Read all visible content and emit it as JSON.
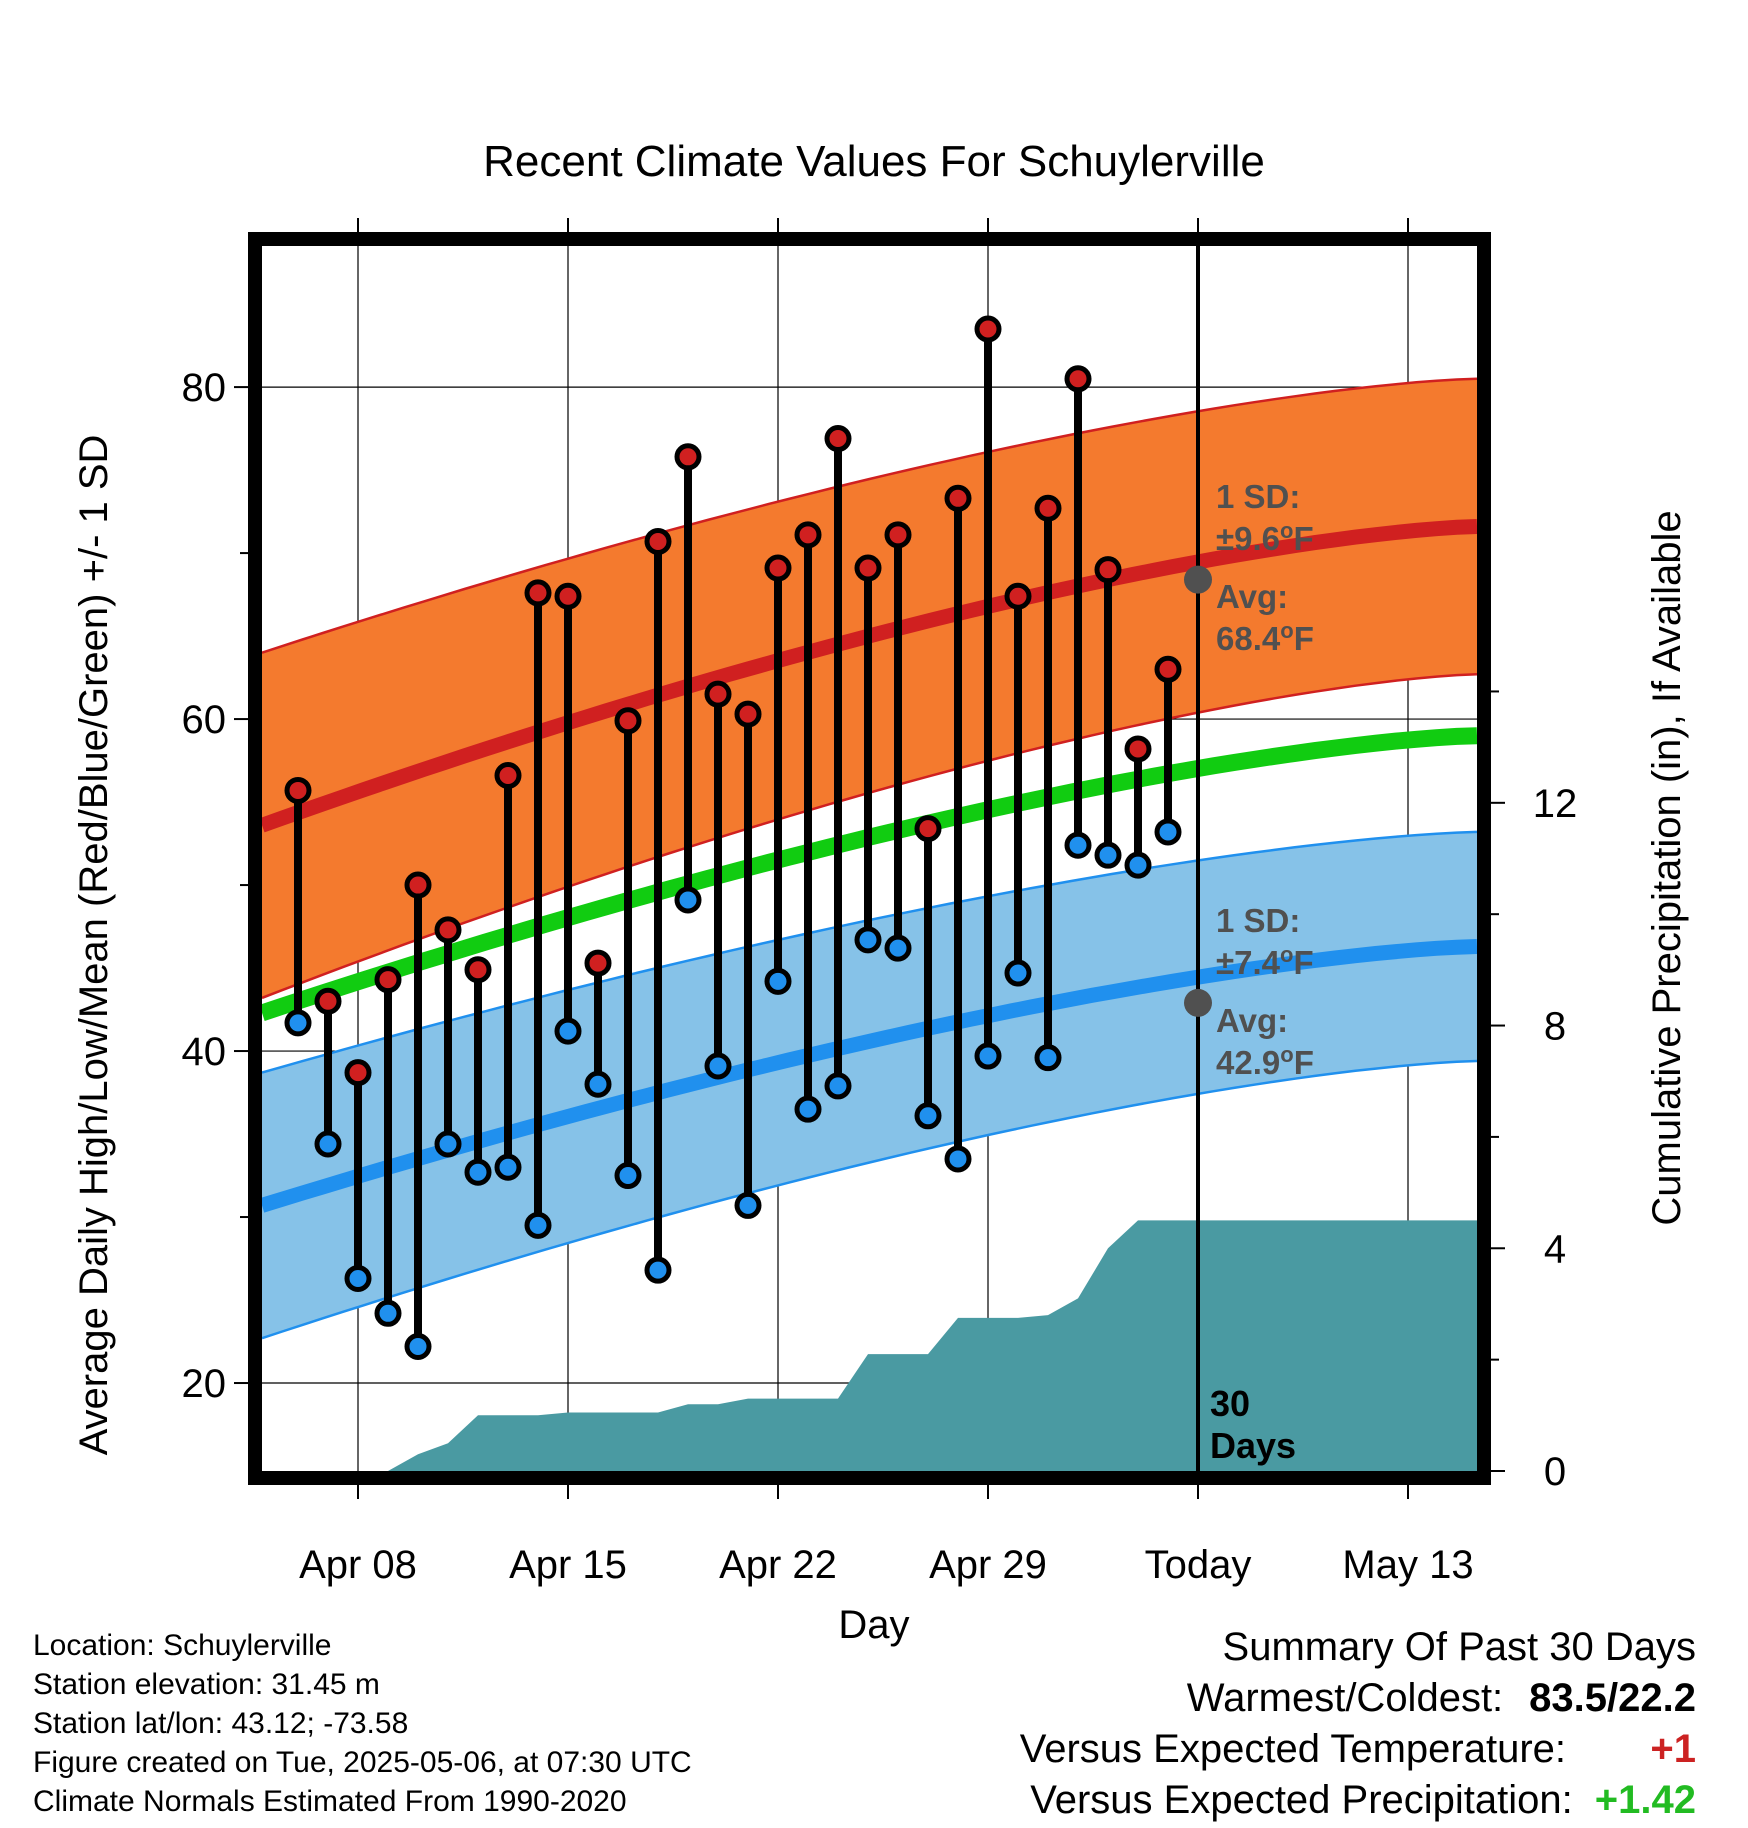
{
  "chart_data": {
    "type": "line",
    "title": "Recent Climate Values For Schuylerville",
    "xlabel": "Day",
    "ylabel": "Average Daily High/Low/Mean (Red/Blue/Green) +/- 1 SD",
    "y2label": "Cumulative Precipitation (in), If Available",
    "x_ticks": [
      {
        "day": 8,
        "label": "Apr 08"
      },
      {
        "day": 15,
        "label": "Apr 15"
      },
      {
        "day": 22,
        "label": "Apr 22"
      },
      {
        "day": 29,
        "label": "Apr 29"
      },
      {
        "day": 36,
        "label": "Today"
      },
      {
        "day": 43,
        "label": "May 13"
      }
    ],
    "xlim": [
      4.8,
      45.3
    ],
    "ylim": [
      14.7,
      88.5
    ],
    "yticks": [
      20,
      40,
      60,
      80
    ],
    "y2lim": [
      0,
      22
    ],
    "y2ticks": [
      0,
      4,
      8,
      12
    ],
    "today_day": 36,
    "days": [
      6,
      7,
      8,
      9,
      10,
      11,
      12,
      13,
      14,
      15,
      16,
      17,
      18,
      19,
      20,
      21,
      22,
      23,
      24,
      25,
      26,
      27,
      28,
      29,
      30,
      31,
      32,
      33,
      34,
      35
    ],
    "series": [
      {
        "name": "High",
        "color": "#d02020",
        "values": [
          55.7,
          43.0,
          38.7,
          44.3,
          50.0,
          47.3,
          44.9,
          56.6,
          67.6,
          67.4,
          45.3,
          59.9,
          70.7,
          75.8,
          61.5,
          60.3,
          69.1,
          71.1,
          76.9,
          69.1,
          71.1,
          53.4,
          73.3,
          83.5,
          67.4,
          72.7,
          80.5,
          69.0,
          58.2,
          63.0
        ]
      },
      {
        "name": "Low",
        "color": "#2090ee",
        "values": [
          41.7,
          34.4,
          26.3,
          24.2,
          22.2,
          34.4,
          32.7,
          33.0,
          29.5,
          41.2,
          38.0,
          32.5,
          26.8,
          49.1,
          39.1,
          30.7,
          44.2,
          36.5,
          37.9,
          46.7,
          46.2,
          36.1,
          33.5,
          39.7,
          44.7,
          39.6,
          52.4,
          51.8,
          51.2,
          53.2
        ]
      }
    ],
    "high_normal": {
      "start": 53.6,
      "end": 71.6,
      "sd_start": 10.4,
      "sd_end": 8.9
    },
    "low_normal": {
      "start": 30.7,
      "end": 46.3,
      "sd_start": 8.0,
      "sd_end": 6.9
    },
    "mean_normal": {
      "start": 42.3,
      "end": 59.0
    },
    "today_high": {
      "avg": 68.4,
      "label_sd": "1 SD:",
      "label_sd_val": "±9.6",
      "label_avg": "Avg:",
      "label_avg_val": "68.4",
      "unit": "F"
    },
    "today_low": {
      "avg": 42.9,
      "label_sd": "1 SD:",
      "label_sd_val": "±7.4",
      "label_avg": "Avg:",
      "label_avg_val": "42.9",
      "unit": "F"
    },
    "precip_cumulative": [
      [
        5,
        0
      ],
      [
        9,
        0
      ],
      [
        10,
        0.3
      ],
      [
        11,
        0.5
      ],
      [
        12,
        1.0
      ],
      [
        14,
        1.0
      ],
      [
        15,
        1.05
      ],
      [
        18,
        1.05
      ],
      [
        19,
        1.2
      ],
      [
        20,
        1.2
      ],
      [
        21,
        1.3
      ],
      [
        24,
        1.3
      ],
      [
        25,
        2.1
      ],
      [
        26,
        2.1
      ],
      [
        27,
        2.1
      ],
      [
        28,
        2.75
      ],
      [
        30,
        2.75
      ],
      [
        31,
        2.8
      ],
      [
        32,
        3.1
      ],
      [
        33,
        4.0
      ],
      [
        34,
        4.5
      ],
      [
        45.3,
        4.5
      ]
    ],
    "days_label_1": "30",
    "days_label_2": "Days",
    "colors": {
      "high_band": "#f47a2e",
      "high_line": "#d02020",
      "low_band": "#86c2e8",
      "low_line": "#2090ee",
      "mean_line": "#11cc11",
      "precip": "#4a9aa2",
      "marker_today": "#505050"
    }
  },
  "footer": {
    "location": "Location: Schuylerville",
    "elevation": "Station elevation: 31.45 m",
    "latlon": "Station lat/lon: 43.12; -73.58",
    "created": "Figure created on Tue, 2025-05-06, at 07:30 UTC",
    "normals": "Climate Normals Estimated From 1990-2020"
  },
  "summary": {
    "heading": "Summary Of Past 30 Days",
    "warm_cold_label": "Warmest/Coldest:",
    "warm_cold_value": "83.5/22.2",
    "temp_label": "Versus Expected Temperature:",
    "temp_value": "+1",
    "precip_label": "Versus Expected Precipitation:",
    "precip_value": "+1.42"
  }
}
